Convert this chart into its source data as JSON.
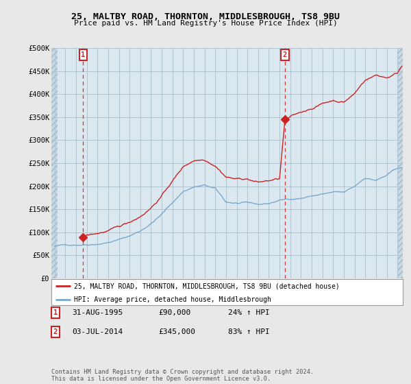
{
  "title1": "25, MALTBY ROAD, THORNTON, MIDDLESBROUGH, TS8 9BU",
  "title2": "Price paid vs. HM Land Registry's House Price Index (HPI)",
  "ytick_vals": [
    0,
    50000,
    100000,
    150000,
    200000,
    250000,
    300000,
    350000,
    400000,
    450000,
    500000
  ],
  "ylim": [
    0,
    500000
  ],
  "xlim_start": 1992.7,
  "xlim_end": 2025.5,
  "bg_color": "#e8e8e8",
  "plot_bg": "#dce8f0",
  "hatch_bg": "#c8d8e4",
  "grid_color": "#b0c4d0",
  "hpi_color": "#7aa8cc",
  "price_color": "#cc2222",
  "dashed_color": "#cc4444",
  "sale1_x": 1995.66,
  "sale1_y": 90000,
  "sale2_x": 2014.5,
  "sale2_y": 345000,
  "legend_line1": "25, MALTBY ROAD, THORNTON, MIDDLESBROUGH, TS8 9BU (detached house)",
  "legend_line2": "HPI: Average price, detached house, Middlesbrough",
  "annotation1_date": "31-AUG-1995",
  "annotation1_price": "£90,000",
  "annotation1_hpi": "24% ↑ HPI",
  "annotation2_date": "03-JUL-2014",
  "annotation2_price": "£345,000",
  "annotation2_hpi": "83% ↑ HPI",
  "footer": "Contains HM Land Registry data © Crown copyright and database right 2024.\nThis data is licensed under the Open Government Licence v3.0."
}
